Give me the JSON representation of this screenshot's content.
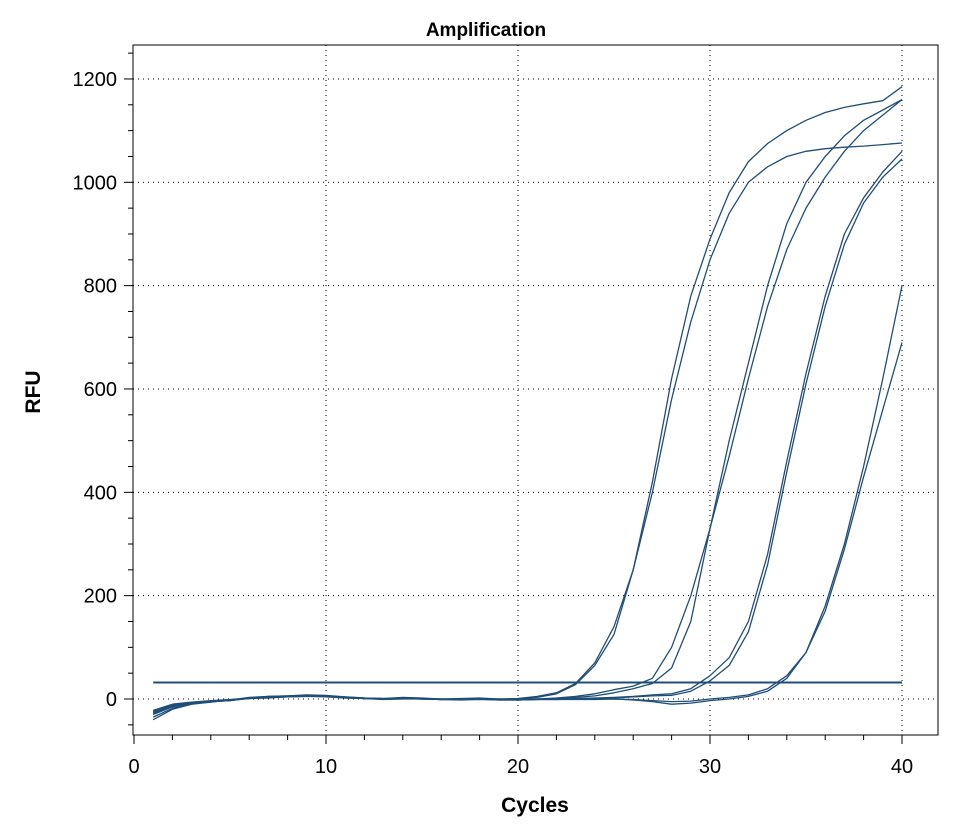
{
  "chart_data": {
    "type": "line",
    "title": "Amplification",
    "xlabel": "Cycles",
    "ylabel": "RFU",
    "xlim": [
      0,
      42
    ],
    "ylim": [
      -70,
      1260
    ],
    "xticks": [
      0,
      10,
      20,
      30,
      40
    ],
    "yticks": [
      0,
      200,
      400,
      600,
      800,
      1000,
      1200
    ],
    "grid": true,
    "line_color": "#1f4e79",
    "threshold": 32,
    "x": [
      1,
      2,
      3,
      4,
      5,
      6,
      7,
      8,
      9,
      10,
      11,
      12,
      13,
      14,
      15,
      16,
      17,
      18,
      19,
      20,
      21,
      22,
      23,
      24,
      25,
      26,
      27,
      28,
      29,
      30,
      31,
      32,
      33,
      34,
      35,
      36,
      37,
      38,
      39,
      40
    ],
    "series": [
      {
        "values": [
          -30,
          -15,
          -8,
          -5,
          -3,
          2,
          5,
          6,
          7,
          6,
          4,
          2,
          1,
          3,
          2,
          0,
          1,
          2,
          0,
          1,
          5,
          12,
          30,
          70,
          140,
          250,
          400,
          580,
          730,
          850,
          940,
          1000,
          1030,
          1050,
          1060,
          1065,
          1068,
          1070,
          1073,
          1076
        ]
      },
      {
        "values": [
          -40,
          -20,
          -10,
          -6,
          -2,
          3,
          5,
          6,
          8,
          7,
          4,
          2,
          1,
          2,
          1,
          0,
          0,
          1,
          0,
          0,
          3,
          10,
          28,
          65,
          125,
          250,
          420,
          620,
          780,
          890,
          980,
          1040,
          1075,
          1100,
          1120,
          1135,
          1145,
          1152,
          1158,
          1185
        ]
      },
      {
        "values": [
          -25,
          -12,
          -8,
          -4,
          -2,
          1,
          4,
          5,
          6,
          5,
          3,
          1,
          0,
          2,
          1,
          -1,
          0,
          1,
          -1,
          0,
          0,
          2,
          5,
          10,
          18,
          25,
          40,
          100,
          200,
          330,
          470,
          620,
          760,
          870,
          950,
          1010,
          1060,
          1100,
          1130,
          1160
        ]
      },
      {
        "values": [
          -28,
          -14,
          -9,
          -5,
          -3,
          2,
          3,
          5,
          7,
          6,
          3,
          2,
          0,
          1,
          1,
          0,
          -1,
          0,
          0,
          -1,
          0,
          1,
          3,
          6,
          12,
          20,
          30,
          60,
          150,
          330,
          500,
          650,
          800,
          920,
          1000,
          1050,
          1090,
          1120,
          1140,
          1160
        ]
      },
      {
        "values": [
          -22,
          -10,
          -6,
          -3,
          -1,
          2,
          4,
          5,
          6,
          5,
          3,
          1,
          0,
          1,
          0,
          -1,
          -1,
          0,
          -1,
          -1,
          0,
          0,
          1,
          2,
          3,
          5,
          8,
          10,
          20,
          45,
          80,
          150,
          280,
          460,
          630,
          780,
          900,
          970,
          1020,
          1060
        ]
      },
      {
        "values": [
          -35,
          -18,
          -9,
          -6,
          -2,
          1,
          3,
          5,
          6,
          5,
          3,
          1,
          0,
          1,
          0,
          -1,
          0,
          0,
          -1,
          -2,
          -1,
          0,
          1,
          1,
          2,
          4,
          6,
          7,
          15,
          35,
          65,
          130,
          260,
          440,
          610,
          760,
          880,
          960,
          1010,
          1045
        ]
      },
      {
        "values": [
          -24,
          -11,
          -7,
          -4,
          -2,
          1,
          3,
          4,
          5,
          5,
          2,
          1,
          0,
          1,
          0,
          -1,
          -1,
          0,
          -2,
          -2,
          -1,
          -1,
          0,
          0,
          0,
          -2,
          -5,
          -10,
          -8,
          -3,
          0,
          5,
          15,
          40,
          90,
          180,
          300,
          450,
          620,
          800
        ]
      },
      {
        "values": [
          -26,
          -13,
          -8,
          -5,
          -3,
          1,
          2,
          4,
          5,
          4,
          2,
          1,
          -1,
          0,
          0,
          -1,
          -2,
          -1,
          -2,
          -2,
          -1,
          -1,
          -1,
          -1,
          0,
          -1,
          -3,
          -5,
          -4,
          0,
          3,
          8,
          20,
          45,
          90,
          170,
          290,
          430,
          560,
          690
        ]
      }
    ]
  }
}
